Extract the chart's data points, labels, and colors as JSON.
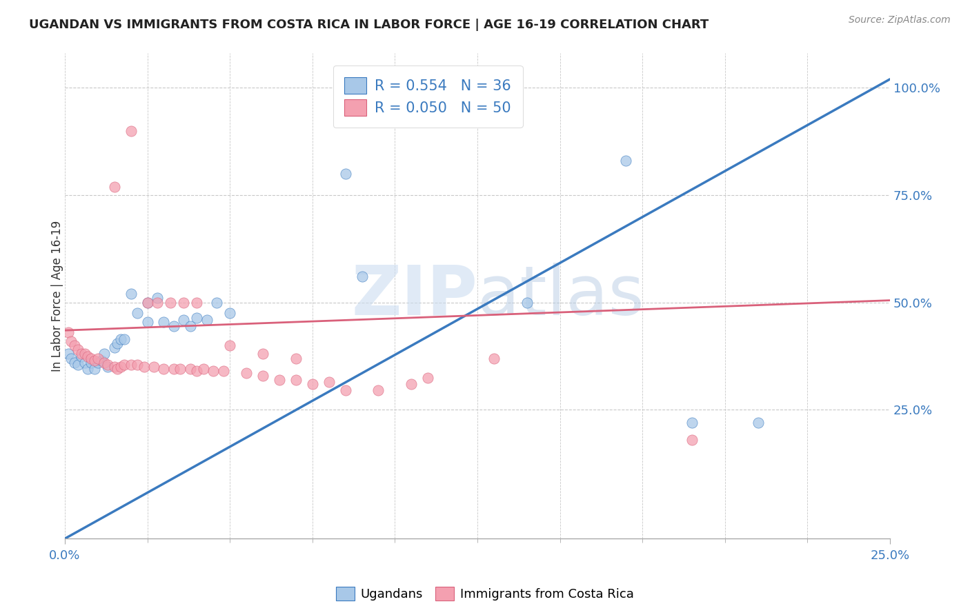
{
  "title": "UGANDAN VS IMMIGRANTS FROM COSTA RICA IN LABOR FORCE | AGE 16-19 CORRELATION CHART",
  "source_text": "Source: ZipAtlas.com",
  "ylabel": "In Labor Force | Age 16-19",
  "xlim": [
    0.0,
    0.25
  ],
  "ylim": [
    -0.05,
    1.08
  ],
  "ytick_labels": [
    "25.0%",
    "50.0%",
    "75.0%",
    "100.0%"
  ],
  "ytick_vals": [
    0.25,
    0.5,
    0.75,
    1.0
  ],
  "blue_R": 0.554,
  "blue_N": 36,
  "pink_R": 0.05,
  "pink_N": 50,
  "blue_color": "#a8c8e8",
  "pink_color": "#f4a0b0",
  "blue_line_color": "#3a7abf",
  "pink_line_color": "#d9607a",
  "legend_label_blue": "Ugandans",
  "legend_label_pink": "Immigrants from Costa Rica",
  "watermark_zip": "ZIP",
  "watermark_atlas": "atlas",
  "background_color": "#ffffff",
  "grid_color": "#c8c8c8",
  "blue_scatter_x": [
    0.001,
    0.002,
    0.003,
    0.004,
    0.005,
    0.006,
    0.007,
    0.008,
    0.009,
    0.01,
    0.011,
    0.012,
    0.013,
    0.015,
    0.016,
    0.017,
    0.018,
    0.02,
    0.022,
    0.025,
    0.028,
    0.03,
    0.033,
    0.036,
    0.038,
    0.04,
    0.043,
    0.046,
    0.085,
    0.09,
    0.14,
    0.17,
    0.19,
    0.21,
    0.025,
    0.05
  ],
  "blue_scatter_y": [
    0.38,
    0.37,
    0.36,
    0.355,
    0.375,
    0.36,
    0.345,
    0.36,
    0.345,
    0.36,
    0.365,
    0.38,
    0.35,
    0.395,
    0.405,
    0.415,
    0.415,
    0.52,
    0.475,
    0.5,
    0.51,
    0.455,
    0.445,
    0.46,
    0.445,
    0.465,
    0.46,
    0.5,
    0.8,
    0.56,
    0.5,
    0.83,
    0.22,
    0.22,
    0.455,
    0.475
  ],
  "pink_scatter_x": [
    0.001,
    0.002,
    0.003,
    0.004,
    0.005,
    0.006,
    0.007,
    0.008,
    0.009,
    0.01,
    0.012,
    0.013,
    0.015,
    0.016,
    0.017,
    0.018,
    0.02,
    0.022,
    0.024,
    0.027,
    0.03,
    0.033,
    0.035,
    0.038,
    0.04,
    0.042,
    0.045,
    0.048,
    0.055,
    0.06,
    0.065,
    0.07,
    0.075,
    0.08,
    0.085,
    0.095,
    0.105,
    0.11,
    0.13,
    0.19,
    0.025,
    0.028,
    0.032,
    0.036,
    0.04,
    0.02,
    0.015,
    0.05,
    0.06,
    0.07
  ],
  "pink_scatter_y": [
    0.43,
    0.41,
    0.4,
    0.39,
    0.38,
    0.38,
    0.375,
    0.37,
    0.365,
    0.37,
    0.36,
    0.355,
    0.35,
    0.345,
    0.35,
    0.355,
    0.355,
    0.355,
    0.35,
    0.35,
    0.345,
    0.345,
    0.345,
    0.345,
    0.34,
    0.345,
    0.34,
    0.34,
    0.335,
    0.33,
    0.32,
    0.32,
    0.31,
    0.315,
    0.295,
    0.295,
    0.31,
    0.325,
    0.37,
    0.18,
    0.5,
    0.5,
    0.5,
    0.5,
    0.5,
    0.9,
    0.77,
    0.4,
    0.38,
    0.37
  ],
  "blue_trendline_x": [
    0.0,
    0.25
  ],
  "blue_trendline_y": [
    -0.05,
    1.02
  ],
  "pink_trendline_x": [
    0.0,
    0.25
  ],
  "pink_trendline_y": [
    0.435,
    0.505
  ]
}
